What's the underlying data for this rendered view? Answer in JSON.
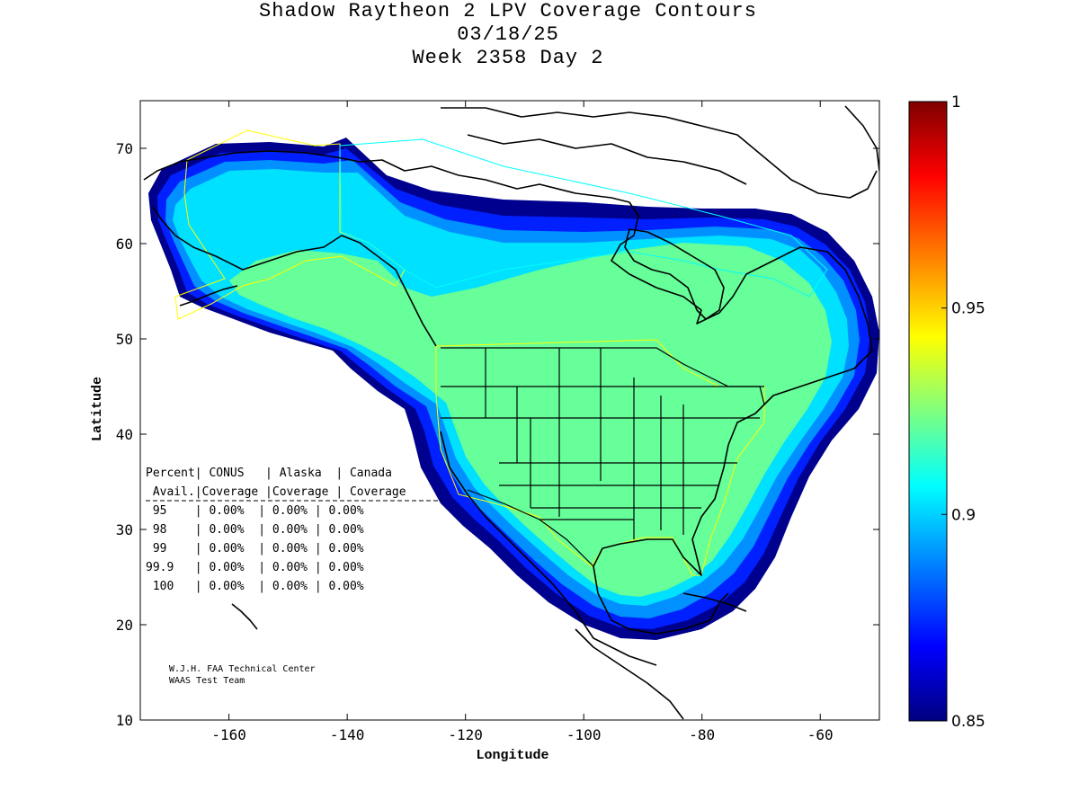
{
  "title": {
    "line1": "Shadow Raytheon 2 LPV Coverage Contours",
    "line2": "03/18/25",
    "line3": "Week 2358 Day 2"
  },
  "axes": {
    "xlabel": "Longitude",
    "ylabel": "Latitude",
    "xlim": [
      -175,
      -50
    ],
    "ylim": [
      10,
      75
    ],
    "xticks": [
      {
        "value": -160,
        "label": "-160"
      },
      {
        "value": -140,
        "label": "-140"
      },
      {
        "value": -120,
        "label": "-120"
      },
      {
        "value": -100,
        "label": "-100"
      },
      {
        "value": -80,
        "label": "-80"
      },
      {
        "value": -60,
        "label": "-60"
      }
    ],
    "yticks": [
      {
        "value": 10,
        "label": "10"
      },
      {
        "value": 20,
        "label": "20"
      },
      {
        "value": 30,
        "label": "30"
      },
      {
        "value": 40,
        "label": "40"
      },
      {
        "value": 50,
        "label": "50"
      },
      {
        "value": 60,
        "label": "60"
      },
      {
        "value": 70,
        "label": "70"
      }
    ]
  },
  "colorbar": {
    "min": 0.85,
    "max": 1,
    "ticks": [
      {
        "value": 1,
        "label": "1"
      },
      {
        "value": 0.95,
        "label": "0.95"
      },
      {
        "value": 0.9,
        "label": "0.9"
      },
      {
        "value": 0.85,
        "label": "0.85"
      }
    ],
    "stops": [
      "#00007f",
      "#0000ff",
      "#007fff",
      "#00ffff",
      "#7fff7f",
      "#ffff00",
      "#ff7f00",
      "#ff0000",
      "#7f0000"
    ]
  },
  "colors": {
    "coverage_core": "#66ff99",
    "boundary_yellow": "#ffff00",
    "boundary_cyan": "#00ffff",
    "coastline": "#000000"
  },
  "table": {
    "header1": "Percent| CONUS   | Alaska  | Canada",
    "header2": " Avail.|Coverage |Coverage | Coverage",
    "rows": [
      " 95    | 0.00%  | 0.00% | 0.00%",
      " 98    | 0.00%  | 0.00% | 0.00%",
      " 99    | 0.00%  | 0.00% | 0.00%",
      "99.9   | 0.00%  | 0.00% | 0.00%",
      " 100   | 0.00%  | 0.00% | 0.00%"
    ]
  },
  "credit": {
    "line1": "W.J.H. FAA Technical Center",
    "line2": "WAAS Test Team"
  },
  "chart_data": {
    "type": "heatmap",
    "title": "Shadow Raytheon 2 LPV Coverage Contours",
    "xlabel": "Longitude",
    "ylabel": "Latitude",
    "xlim": [
      -175,
      -50
    ],
    "ylim": [
      10,
      75
    ],
    "colorbar_range": [
      0.85,
      1
    ],
    "core_availability_approx": 0.91,
    "coverage_lon_extent_approx": [
      -172,
      -50
    ],
    "coverage_lat_extent_approx": [
      18,
      71
    ]
  }
}
